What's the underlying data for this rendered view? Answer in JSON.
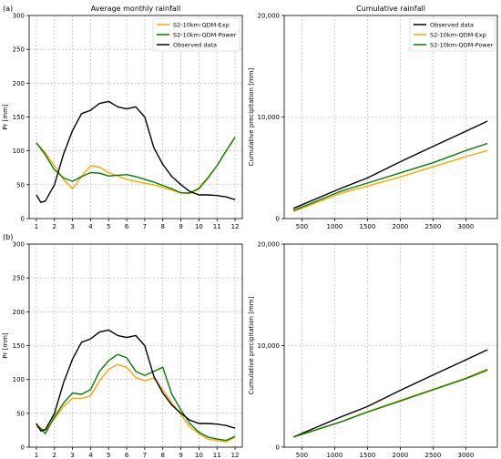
{
  "colors": {
    "observed": "#000000",
    "exp": "#FFA500",
    "power": "#008000",
    "grid": "#b0b0b0"
  },
  "chart_data": [
    {
      "panel_label": "(a)",
      "title": "Average monthly rainfall",
      "type": "line",
      "ylabel": "Pr [mm]",
      "xlim": [
        0.6,
        12.4
      ],
      "ylim": [
        0,
        300
      ],
      "xticks": [
        1,
        2,
        3,
        4,
        5,
        6,
        7,
        8,
        9,
        10,
        11,
        12
      ],
      "yticks": [
        0,
        50,
        100,
        150,
        200,
        250,
        300
      ],
      "grid": true,
      "legend": "top-right",
      "series": [
        {
          "name": "S2-10km-QDM-Exp",
          "color_key": "exp",
          "x": [
            1,
            1.5,
            2,
            2.5,
            3,
            3.5,
            4,
            4.5,
            5,
            5.5,
            6,
            6.5,
            7,
            7.5,
            8,
            8.5,
            9,
            9.5,
            10,
            10.5,
            11,
            11.5,
            12
          ],
          "y": [
            112,
            97,
            78,
            58,
            44,
            62,
            78,
            76,
            68,
            63,
            58,
            55,
            52,
            50,
            46,
            42,
            38,
            37,
            46,
            61,
            78,
            100,
            121
          ]
        },
        {
          "name": "S2-10km-QDM-Power",
          "color_key": "power",
          "x": [
            1,
            1.5,
            2,
            2.5,
            3,
            3.5,
            4,
            4.5,
            5,
            5.5,
            6,
            6.5,
            7,
            7.5,
            8,
            8.5,
            9,
            9.5,
            10,
            10.5,
            11,
            11.5,
            12
          ],
          "y": [
            112,
            94,
            72,
            60,
            55,
            62,
            68,
            67,
            63,
            64,
            65,
            62,
            58,
            54,
            49,
            44,
            38,
            38,
            44,
            60,
            78,
            100,
            120
          ]
        },
        {
          "name": "Observed data",
          "color_key": "observed",
          "x": [
            1,
            1.25,
            1.5,
            2,
            2.5,
            3,
            3.5,
            4,
            4.5,
            5,
            5.5,
            6,
            6.5,
            7,
            7.5,
            8,
            8.5,
            9,
            9.5,
            10,
            10.5,
            11,
            11.5,
            12
          ],
          "y": [
            35,
            24,
            26,
            50,
            95,
            130,
            155,
            160,
            170,
            173,
            165,
            162,
            165,
            150,
            105,
            80,
            62,
            50,
            40,
            35,
            35,
            34,
            32,
            28
          ]
        }
      ]
    },
    {
      "title": "Cumulative rainfall",
      "type": "line",
      "ylabel": "Cumulative precipitation [mm]",
      "xlim": [
        230,
        3480
      ],
      "ylim": [
        0,
        20000
      ],
      "xticks": [
        500,
        1000,
        1500,
        2000,
        2500,
        3000
      ],
      "yticks": [
        0,
        10000,
        20000
      ],
      "ytick_labels": [
        "0",
        "10,000",
        "20,000"
      ],
      "grid": true,
      "legend": "top-right",
      "series": [
        {
          "name": "Observed data",
          "color_key": "observed",
          "x": [
            370,
            1100,
            1500,
            2000,
            2500,
            3000,
            3330
          ],
          "y": [
            1000,
            3000,
            4000,
            5600,
            7100,
            8600,
            9600
          ]
        },
        {
          "name": "S2-10km-QDM-Exp",
          "color_key": "exp",
          "x": [
            370,
            1100,
            1500,
            2000,
            2500,
            3000,
            3330
          ],
          "y": [
            700,
            2500,
            3200,
            4100,
            5100,
            6100,
            6700
          ]
        },
        {
          "name": "S2-10km-QDM-Power",
          "color_key": "power",
          "x": [
            370,
            1100,
            1500,
            2000,
            2500,
            3000,
            3330
          ],
          "y": [
            800,
            2700,
            3500,
            4500,
            5500,
            6700,
            7400
          ]
        }
      ]
    },
    {
      "panel_label": "(b)",
      "type": "line",
      "ylabel": "Pr [mm]",
      "xlim": [
        0.6,
        12.4
      ],
      "ylim": [
        0,
        300
      ],
      "xticks": [
        1,
        2,
        3,
        4,
        5,
        6,
        7,
        8,
        9,
        10,
        11,
        12
      ],
      "yticks": [
        0,
        50,
        100,
        150,
        200,
        250,
        300
      ],
      "grid": true,
      "series": [
        {
          "color_key": "exp",
          "x": [
            1,
            1.5,
            2,
            2.5,
            3,
            3.5,
            4,
            4.5,
            5,
            5.5,
            6,
            6.5,
            7,
            7.5,
            8,
            8.5,
            9,
            9.5,
            10,
            10.5,
            11,
            11.5,
            12
          ],
          "y": [
            30,
            25,
            42,
            60,
            72,
            72,
            76,
            98,
            115,
            122,
            118,
            103,
            98,
            102,
            85,
            65,
            48,
            30,
            20,
            12,
            10,
            8,
            15
          ]
        },
        {
          "color_key": "power",
          "x": [
            1,
            1.5,
            2,
            2.5,
            3,
            3.5,
            4,
            4.5,
            5,
            5.5,
            6,
            6.5,
            7,
            7.5,
            8,
            8.5,
            9,
            9.5,
            10,
            10.5,
            11,
            11.5,
            12
          ],
          "y": [
            34,
            20,
            45,
            65,
            80,
            78,
            85,
            112,
            128,
            137,
            132,
            112,
            106,
            112,
            118,
            78,
            55,
            35,
            22,
            15,
            12,
            10,
            16
          ]
        },
        {
          "color_key": "observed",
          "x": [
            1,
            1.25,
            1.5,
            2,
            2.5,
            3,
            3.5,
            4,
            4.5,
            5,
            5.5,
            6,
            6.5,
            7,
            7.5,
            8,
            8.5,
            9,
            9.5,
            10,
            10.5,
            11,
            11.5,
            12
          ],
          "y": [
            35,
            24,
            26,
            50,
            95,
            130,
            155,
            160,
            170,
            173,
            165,
            162,
            165,
            150,
            105,
            80,
            62,
            50,
            40,
            35,
            35,
            34,
            32,
            28
          ]
        }
      ]
    },
    {
      "type": "line",
      "ylabel": "Cumulative precipitation [mm]",
      "xlim": [
        230,
        3480
      ],
      "ylim": [
        0,
        20000
      ],
      "xticks": [
        500,
        1000,
        1500,
        2000,
        2500,
        3000
      ],
      "yticks": [
        0,
        10000,
        20000
      ],
      "ytick_labels": [
        "0",
        "10,000",
        "20,000"
      ],
      "grid": true,
      "series": [
        {
          "color_key": "observed",
          "x": [
            370,
            1100,
            1500,
            2000,
            2500,
            3000,
            3330
          ],
          "y": [
            1000,
            3000,
            4000,
            5600,
            7100,
            8600,
            9600
          ]
        },
        {
          "color_key": "exp",
          "x": [
            370,
            1100,
            1500,
            2000,
            2500,
            3000,
            3330
          ],
          "y": [
            1000,
            2500,
            3500,
            4600,
            5700,
            6800,
            7700
          ]
        },
        {
          "color_key": "power",
          "x": [
            370,
            1100,
            1500,
            2000,
            2500,
            3000,
            3330
          ],
          "y": [
            1000,
            2500,
            3450,
            4550,
            5650,
            6750,
            7600
          ]
        }
      ]
    }
  ]
}
